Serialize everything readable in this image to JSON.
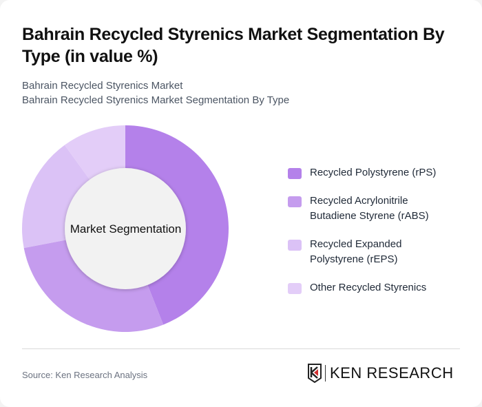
{
  "header": {
    "title": "Bahrain Recycled Styrenics Market Segmentation By Type (in value %)",
    "subtitle_line1": "Bahrain Recycled Styrenics Market",
    "subtitle_line2": "Bahrain Recycled Styrenics Market Segmentation By Type"
  },
  "chart": {
    "center_label": "Market Segmentation"
  },
  "legend": {
    "items": [
      {
        "label": "Recycled Polystyrene (rPS)",
        "color": "#b481ea"
      },
      {
        "label": "Recycled Acrylonitrile Butadiene Styrene (rABS)",
        "color": "#c59cee"
      },
      {
        "label": "Recycled Expanded Polystyrene (rEPS)",
        "color": "#dbc2f6"
      },
      {
        "label": "Other Recycled Styrenics",
        "color": "#e3cdf8"
      }
    ]
  },
  "footer": {
    "source": "Source: Ken Research Analysis",
    "logo_text": "KEN RESEARCH"
  },
  "chart_data": {
    "type": "pie",
    "subtype": "donut",
    "title": "Bahrain Recycled Styrenics Market Segmentation By Type (in value %)",
    "center_label": "Market Segmentation",
    "categories": [
      "Recycled Polystyrene (rPS)",
      "Recycled Acrylonitrile Butadiene Styrene (rABS)",
      "Recycled Expanded Polystyrene (rEPS)",
      "Other Recycled Styrenics"
    ],
    "values": [
      44,
      28,
      18,
      10
    ],
    "colors": [
      "#b481ea",
      "#c59cee",
      "#dbc2f6",
      "#e3cdf8"
    ],
    "unit": "%",
    "legend_position": "right",
    "start_angle": "12 o'clock, clockwise"
  }
}
